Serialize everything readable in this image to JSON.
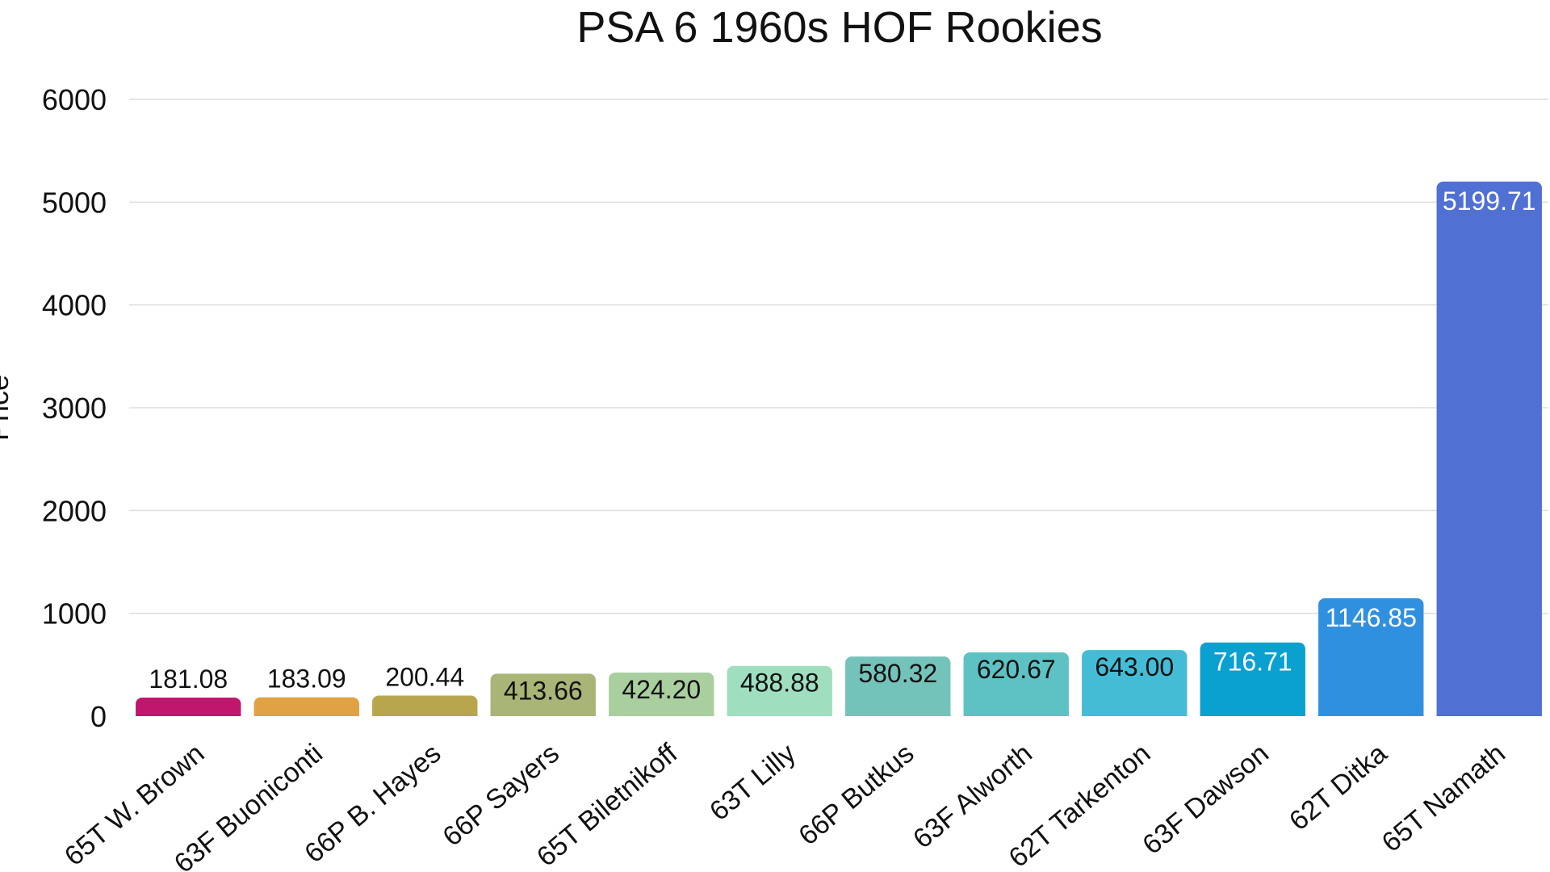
{
  "chart_data": {
    "type": "bar",
    "title": "PSA 6 1960s HOF Rookies",
    "xlabel": "",
    "ylabel": "Price",
    "ylim": [
      0,
      6000
    ],
    "yticks": [
      0,
      1000,
      2000,
      3000,
      4000,
      5000,
      6000
    ],
    "grid": true,
    "categories": [
      "65T W. Brown",
      "63F Buoniconti",
      "66P B. Hayes",
      "66P Sayers",
      "65T Biletnikoff",
      "63T Lilly",
      "66P Butkus",
      "63F Alworth",
      "62T Tarkenton",
      "63F Dawson",
      "62T Ditka",
      "65T Namath"
    ],
    "values": [
      181.08,
      183.09,
      200.44,
      413.66,
      424.2,
      488.88,
      580.32,
      620.67,
      643.0,
      716.71,
      1146.85,
      5199.71
    ],
    "value_labels": [
      "181.08",
      "183.09",
      "200.44",
      "413.66",
      "424.20",
      "488.88",
      "580.32",
      "620.67",
      "643.00",
      "716.71",
      "1146.85",
      "5199.71"
    ],
    "colors": [
      "#c0166e",
      "#e0a243",
      "#b8a64e",
      "#a9b577",
      "#a9cf9f",
      "#9fdfc0",
      "#74c3bb",
      "#5ec2c4",
      "#45bcd6",
      "#0aa0d0",
      "#3090e0",
      "#5170d4"
    ]
  }
}
